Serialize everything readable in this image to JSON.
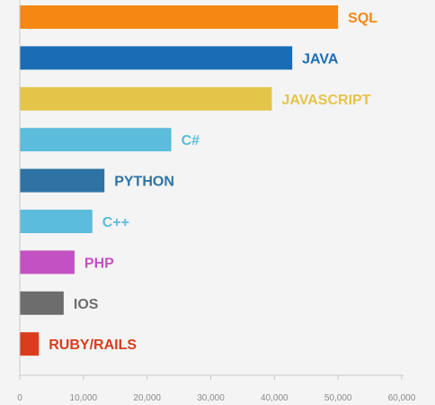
{
  "chart_data": {
    "type": "bar",
    "orientation": "horizontal",
    "title": "",
    "xlabel": "",
    "ylabel": "",
    "xlim": [
      0,
      60000
    ],
    "xticks": [
      "0",
      "10,000",
      "20,000",
      "30,000",
      "40,000",
      "50,000",
      "60,000"
    ],
    "grid": false,
    "categories": [
      "SQL",
      "JAVA",
      "JAVASCRIPT",
      "C#",
      "PYTHON",
      "C++",
      "PHP",
      "IOS",
      "RUBY/RAILS"
    ],
    "values": [
      50000,
      42800,
      39600,
      23800,
      13300,
      11400,
      8600,
      6900,
      3000
    ],
    "colors": [
      "#f68712",
      "#1a6db5",
      "#e5c44a",
      "#5bbcdc",
      "#2e73a3",
      "#5bbcdc",
      "#c252c2",
      "#6d6d6d",
      "#d93d1e"
    ],
    "label_colors": [
      "#f68712",
      "#1a6db5",
      "#e5c44a",
      "#5bbcdc",
      "#2e73a3",
      "#5bbcdc",
      "#c252c2",
      "#6d6d6d",
      "#d93d1e"
    ]
  }
}
